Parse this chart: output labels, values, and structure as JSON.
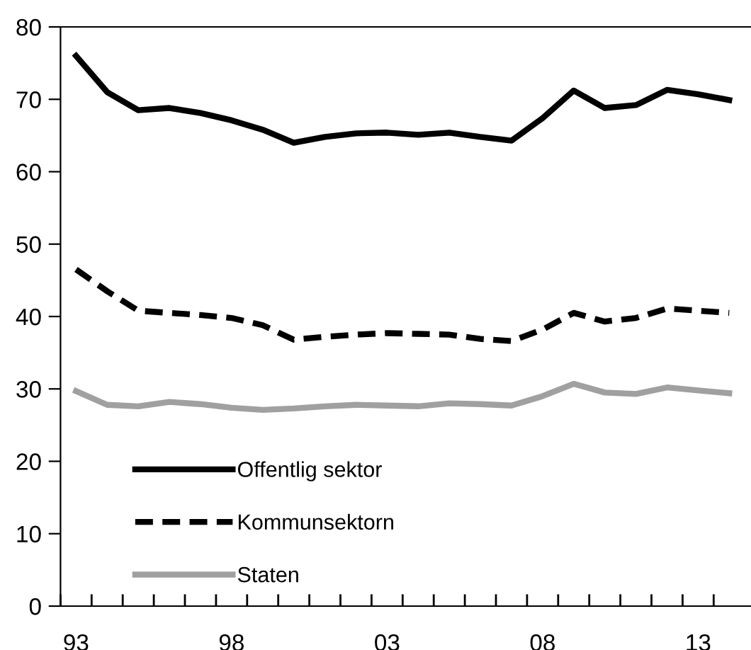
{
  "chart_data": {
    "type": "line",
    "x": [
      1993,
      1994,
      1995,
      1996,
      1997,
      1998,
      1999,
      2000,
      2001,
      2002,
      2003,
      2004,
      2005,
      2006,
      2007,
      2008,
      2009,
      2010,
      2011,
      2012,
      2013,
      2014
    ],
    "series": [
      {
        "name": "Offentlig sektor",
        "color": "#000000",
        "line_style": "solid",
        "values": [
          76,
          71,
          68.5,
          68.8,
          68.1,
          67.1,
          65.8,
          64,
          64.8,
          65.3,
          65.4,
          65.1,
          65.4,
          64.8,
          64.3,
          67.4,
          71.2,
          68.8,
          69.2,
          71.3,
          70.7,
          69.9
        ]
      },
      {
        "name": "Kommunsektorn",
        "color": "#000000",
        "line_style": "dashed",
        "values": [
          46.5,
          43.5,
          40.8,
          40.5,
          40.2,
          39.8,
          38.8,
          36.8,
          37.2,
          37.5,
          37.7,
          37.6,
          37.5,
          36.9,
          36.6,
          38.2,
          40.5,
          39.3,
          39.8,
          41.1,
          40.8,
          40.5
        ]
      },
      {
        "name": "Staten",
        "color": "#a0a0a0",
        "line_style": "solid",
        "values": [
          29.7,
          27.8,
          27.6,
          28.2,
          27.9,
          27.4,
          27.1,
          27.3,
          27.6,
          27.8,
          27.7,
          27.6,
          28.0,
          27.9,
          27.7,
          29.0,
          30.7,
          29.5,
          29.3,
          30.2,
          29.8,
          29.4
        ]
      }
    ],
    "xlim": [
      1992.5,
      2014.7
    ],
    "ylim": [
      0,
      80
    ],
    "xticks": [
      {
        "value": 1993,
        "label": "93"
      },
      {
        "value": 1998,
        "label": "98"
      },
      {
        "value": 2003,
        "label": "03"
      },
      {
        "value": 2008,
        "label": "08"
      },
      {
        "value": 2013,
        "label": "13"
      },
      {
        "value": 1992.5,
        "label": null
      },
      {
        "value": 1993.5,
        "label": null
      },
      {
        "value": 1994.5,
        "label": null
      },
      {
        "value": 1995.5,
        "label": null
      },
      {
        "value": 1996.5,
        "label": null
      },
      {
        "value": 1997.5,
        "label": null
      },
      {
        "value": 1998.5,
        "label": null
      },
      {
        "value": 1999.5,
        "label": null
      },
      {
        "value": 2000.5,
        "label": null
      },
      {
        "value": 2001.5,
        "label": null
      },
      {
        "value": 2002.5,
        "label": null
      },
      {
        "value": 2003.5,
        "label": null
      },
      {
        "value": 2004.5,
        "label": null
      },
      {
        "value": 2005.5,
        "label": null
      },
      {
        "value": 2006.5,
        "label": null
      },
      {
        "value": 2007.5,
        "label": null
      },
      {
        "value": 2008.5,
        "label": null
      },
      {
        "value": 2009.5,
        "label": null
      },
      {
        "value": 2010.5,
        "label": null
      },
      {
        "value": 2011.5,
        "label": null
      },
      {
        "value": 2012.5,
        "label": null
      },
      {
        "value": 2013.5,
        "label": null
      }
    ],
    "yticks": [
      0,
      10,
      20,
      30,
      40,
      50,
      60,
      70,
      80
    ],
    "grid": false,
    "legend": "bottom left",
    "marker": "none"
  }
}
